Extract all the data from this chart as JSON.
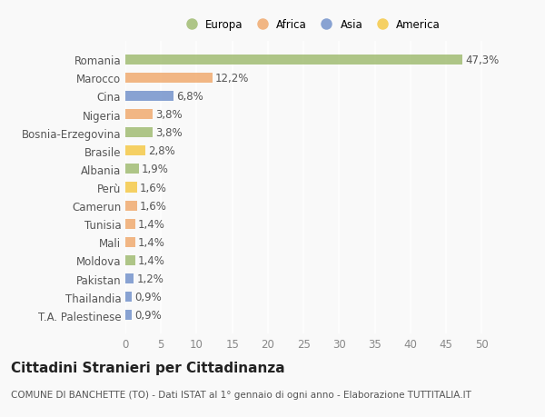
{
  "categories": [
    "T.A. Palestinese",
    "Thailandia",
    "Pakistan",
    "Moldova",
    "Mali",
    "Tunisia",
    "Camerun",
    "Perù",
    "Albania",
    "Brasile",
    "Bosnia-Erzegovina",
    "Nigeria",
    "Cina",
    "Marocco",
    "Romania"
  ],
  "values": [
    0.9,
    0.9,
    1.2,
    1.4,
    1.4,
    1.4,
    1.6,
    1.6,
    1.9,
    2.8,
    3.8,
    3.8,
    6.8,
    12.2,
    47.3
  ],
  "labels": [
    "0,9%",
    "0,9%",
    "1,2%",
    "1,4%",
    "1,4%",
    "1,4%",
    "1,6%",
    "1,6%",
    "1,9%",
    "2,8%",
    "3,8%",
    "3,8%",
    "6,8%",
    "12,2%",
    "47,3%"
  ],
  "colors": [
    "#6f8fca",
    "#6f8fca",
    "#6f8fca",
    "#9eba6e",
    "#f0a86a",
    "#f0a86a",
    "#f0a86a",
    "#f5c842",
    "#9eba6e",
    "#f5c842",
    "#9eba6e",
    "#f0a86a",
    "#6f8fca",
    "#f0a86a",
    "#9eba6e"
  ],
  "legend": [
    {
      "label": "Europa",
      "color": "#9eba6e"
    },
    {
      "label": "Africa",
      "color": "#f0a86a"
    },
    {
      "label": "Asia",
      "color": "#6f8fca"
    },
    {
      "label": "America",
      "color": "#f5c842"
    }
  ],
  "title": "Cittadini Stranieri per Cittadinanza",
  "subtitle": "COMUNE DI BANCHETTE (TO) - Dati ISTAT al 1° gennaio di ogni anno - Elaborazione TUTTITALIA.IT",
  "xlim": [
    0,
    52
  ],
  "xticks": [
    0,
    5,
    10,
    15,
    20,
    25,
    30,
    35,
    40,
    45,
    50
  ],
  "background_color": "#f9f9f9",
  "bar_alpha": 0.82,
  "grid_color": "#ffffff",
  "label_fontsize": 8.5,
  "tick_fontsize": 8.5,
  "title_fontsize": 11,
  "subtitle_fontsize": 7.5,
  "bar_height": 0.55
}
